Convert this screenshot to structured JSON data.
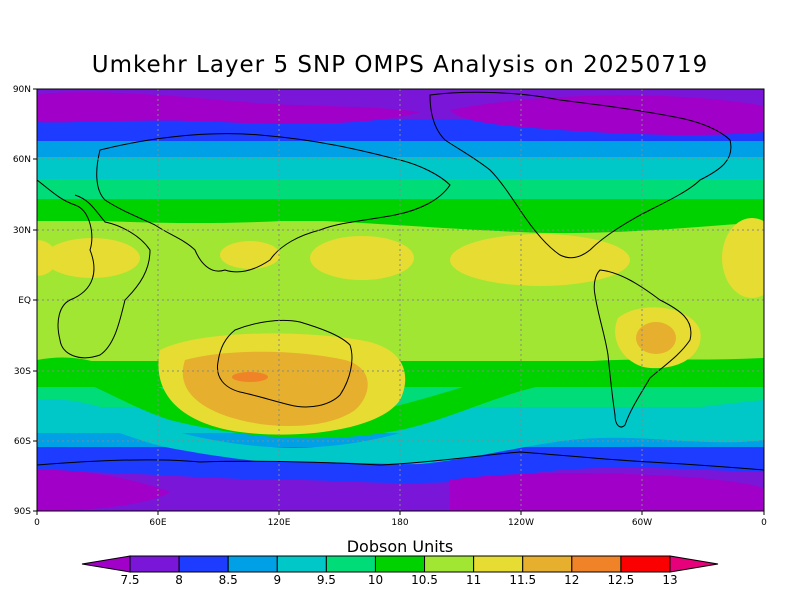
{
  "title": "Umkehr Layer 5 SNP OMPS Analysis on 20250719",
  "legend": {
    "title": "Dobson Units",
    "labels": [
      "7.5",
      "8",
      "8.5",
      "9",
      "9.5",
      "10",
      "10.5",
      "11",
      "11.5",
      "12",
      "12.5",
      "13"
    ],
    "colors": [
      "#a000c8",
      "#7a16d8",
      "#1e3cff",
      "#00a0e6",
      "#00c8c8",
      "#00dc78",
      "#00d200",
      "#a0e632",
      "#e6dc32",
      "#e6af2d",
      "#f08228",
      "#fa0000",
      "#e6007a"
    ]
  },
  "axes": {
    "lat_ticks": [
      "90N",
      "60N",
      "30N",
      "EQ",
      "30S",
      "60S",
      "90S"
    ],
    "lon_ticks": [
      "0",
      "60E",
      "120E",
      "180",
      "120W",
      "60W",
      "0"
    ]
  },
  "chart_data": {
    "type": "heatmap",
    "title": "Umkehr Layer 5 SNP OMPS Analysis on 20250719",
    "units": "Dobson Units",
    "lat_range": [
      -90,
      90
    ],
    "lon_range": [
      0,
      360
    ],
    "contour_levels": [
      7.5,
      8,
      8.5,
      9,
      9.5,
      10,
      10.5,
      11,
      11.5,
      12,
      12.5,
      13
    ],
    "zonal_bands": [
      {
        "lat": [
          75,
          90
        ],
        "value": 7.5
      },
      {
        "lat": [
          63,
          75
        ],
        "value": 8
      },
      {
        "lat": [
          55,
          63
        ],
        "value": 9
      },
      {
        "lat": [
          45,
          55
        ],
        "value": 9.5
      },
      {
        "lat": [
          35,
          45
        ],
        "value": 10.5
      },
      {
        "lat": [
          -20,
          35
        ],
        "value": 11
      },
      {
        "lat": [
          -40,
          -20
        ],
        "value": 10.5
      },
      {
        "lat": [
          -55,
          -40
        ],
        "value": 9.5
      },
      {
        "lat": [
          -65,
          -55
        ],
        "value": 8.5
      },
      {
        "lat": [
          -90,
          -65
        ],
        "value": 7.5
      }
    ],
    "maxima": [
      {
        "region": "Australia",
        "value": 12.5
      },
      {
        "region": "Brazil",
        "value": 12
      },
      {
        "region": "Subtropical belt",
        "value": 11.5
      }
    ],
    "grid": true
  }
}
